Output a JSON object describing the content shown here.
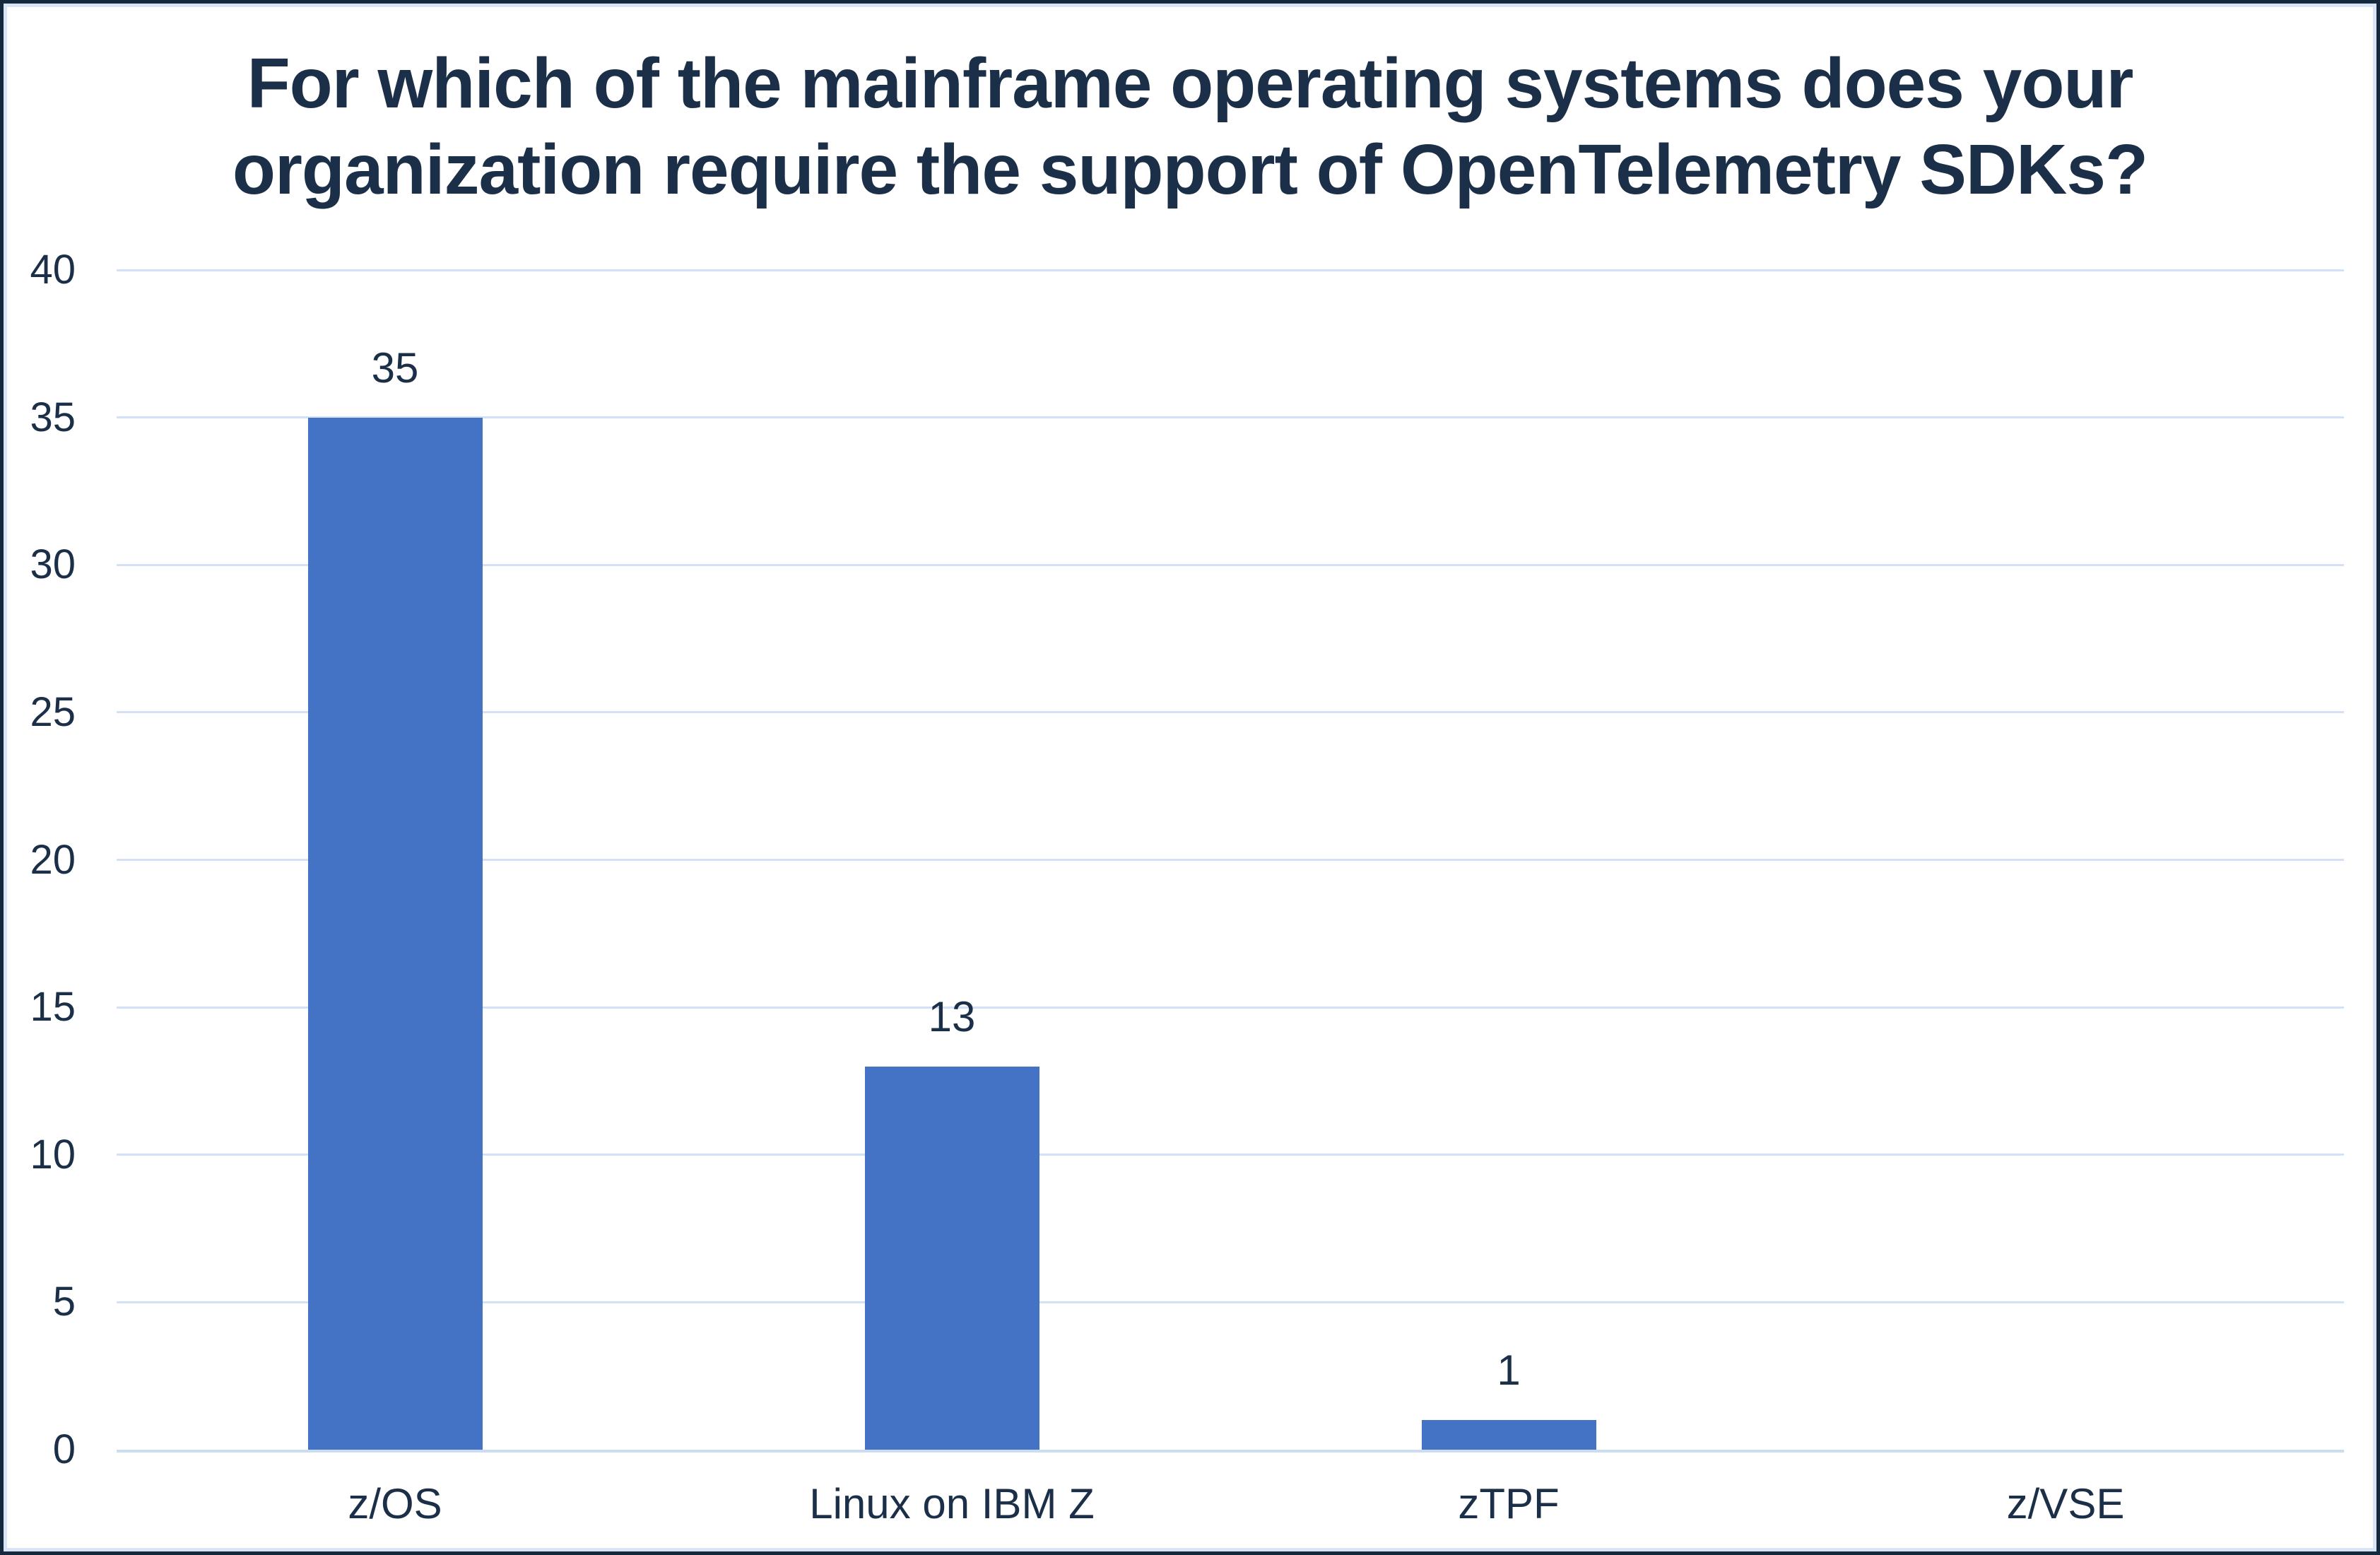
{
  "frame": {
    "background": "#ffffff",
    "border_color": "#15293e",
    "inner_border_color": "#d8e5f7"
  },
  "chart_data": {
    "type": "bar",
    "title": "For which of the mainframe operating systems does your organization require the support of OpenTelemetry SDKs?",
    "title_lines": [
      "For which of the mainframe operating systems does your",
      "organization require the support of OpenTelemetry SDKs?"
    ],
    "categories": [
      "z/OS",
      "Linux on IBM Z",
      "zTPF",
      "z/VSE"
    ],
    "values": [
      35,
      13,
      1,
      0
    ],
    "data_labels": [
      "35",
      "13",
      "1",
      ""
    ],
    "ytick_labels": [
      "0",
      "5",
      "10",
      "15",
      "20",
      "25",
      "30",
      "35",
      "40"
    ],
    "yticks": [
      0,
      5,
      10,
      15,
      20,
      25,
      30,
      35,
      40
    ],
    "ylim": [
      0,
      40
    ],
    "xlabel": "",
    "ylabel": "",
    "legend": "none",
    "grid": "horizontal",
    "colors": {
      "bar": "#4472c4",
      "title_text": "#1b3048",
      "axis_text": "#1b3048",
      "gridline": "#d3e1f4",
      "axis_line": "#cdddf1"
    }
  }
}
